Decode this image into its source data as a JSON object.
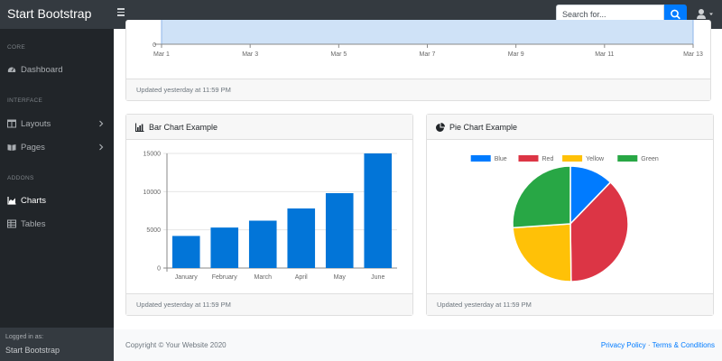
{
  "topbar": {
    "brand": "Start Bootstrap",
    "search_placeholder": "Search for..."
  },
  "sidebar": {
    "headings": [
      "CORE",
      "INTERFACE",
      "ADDONS"
    ],
    "items": [
      {
        "label": "Dashboard",
        "icon": "tachometer-icon"
      },
      {
        "label": "Layouts",
        "icon": "columns-icon"
      },
      {
        "label": "Pages",
        "icon": "book-open-icon"
      },
      {
        "label": "Charts",
        "icon": "chart-area-icon"
      },
      {
        "label": "Tables",
        "icon": "table-icon"
      }
    ],
    "footer_small": "Logged in as:",
    "footer_name": "Start Bootstrap"
  },
  "area_card": {
    "x_labels": [
      "Mar 1",
      "Mar 3",
      "Mar 5",
      "Mar 7",
      "Mar 9",
      "Mar 11",
      "Mar 13"
    ],
    "y_label": "0",
    "footer": "Updated yesterday at 11:59 PM"
  },
  "bar_card": {
    "title": "Bar Chart Example",
    "footer": "Updated yesterday at 11:59 PM"
  },
  "pie_card": {
    "title": "Pie Chart Example",
    "footer": "Updated yesterday at 11:59 PM"
  },
  "chart_data": [
    {
      "type": "area",
      "x": [
        "Mar 1",
        "Mar 3",
        "Mar 5",
        "Mar 7",
        "Mar 9",
        "Mar 11",
        "Mar 13"
      ],
      "ylim": [
        0,
        null
      ]
    },
    {
      "type": "bar",
      "categories": [
        "January",
        "February",
        "March",
        "April",
        "May",
        "June"
      ],
      "values": [
        4200,
        5300,
        6200,
        7800,
        9800,
        15000
      ],
      "ylim": [
        0,
        15000
      ],
      "yticks": [
        0,
        5000,
        10000,
        15000
      ],
      "color": "#0275d8"
    },
    {
      "type": "pie",
      "labels": [
        "Blue",
        "Red",
        "Yellow",
        "Green"
      ],
      "values": [
        12.21,
        37.58,
        24.13,
        26.08
      ],
      "colors": [
        "#007bff",
        "#dc3545",
        "#ffc107",
        "#28a745"
      ]
    }
  ],
  "footer": {
    "copyright": "Copyright © Your Website 2020",
    "privacy": "Privacy Policy",
    "separator": "·",
    "terms": "Terms & Conditions"
  },
  "colors": {
    "nav_bg": "#343a40",
    "sidebar_bg": "#212529",
    "primary": "#007bff",
    "area_fill": "#cfe2f7"
  }
}
